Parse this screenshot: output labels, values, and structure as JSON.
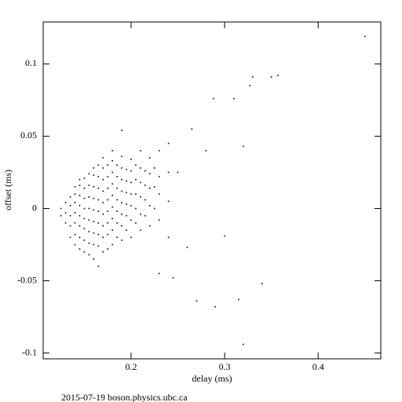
{
  "chart_data": {
    "type": "scatter",
    "xlabel": "delay (ms)",
    "ylabel": "offset (ms)",
    "footer": "2015-07-19  boson.physics.ubc.ca",
    "color": "#000000",
    "xlim": [
      0.106,
      0.467
    ],
    "ylim": [
      -0.104,
      0.129
    ],
    "xticks": [
      0.2,
      0.3,
      0.4
    ],
    "yticks": [
      -0.1,
      -0.05,
      0,
      0.05,
      0.1
    ],
    "x": [
      0.125,
      0.125,
      0.13,
      0.13,
      0.13,
      0.135,
      0.135,
      0.135,
      0.135,
      0.135,
      0.14,
      0.14,
      0.14,
      0.14,
      0.14,
      0.14,
      0.14,
      0.145,
      0.145,
      0.145,
      0.145,
      0.145,
      0.145,
      0.145,
      0.145,
      0.15,
      0.15,
      0.15,
      0.15,
      0.15,
      0.15,
      0.15,
      0.15,
      0.155,
      0.155,
      0.155,
      0.155,
      0.155,
      0.155,
      0.155,
      0.155,
      0.16,
      0.16,
      0.16,
      0.16,
      0.16,
      0.16,
      0.16,
      0.16,
      0.16,
      0.165,
      0.165,
      0.165,
      0.165,
      0.165,
      0.165,
      0.165,
      0.165,
      0.165,
      0.17,
      0.17,
      0.17,
      0.17,
      0.17,
      0.17,
      0.17,
      0.17,
      0.17,
      0.175,
      0.175,
      0.175,
      0.175,
      0.175,
      0.175,
      0.175,
      0.175,
      0.18,
      0.18,
      0.18,
      0.18,
      0.18,
      0.18,
      0.18,
      0.18,
      0.18,
      0.185,
      0.185,
      0.185,
      0.185,
      0.185,
      0.185,
      0.185,
      0.19,
      0.19,
      0.19,
      0.19,
      0.19,
      0.19,
      0.19,
      0.19,
      0.195,
      0.195,
      0.195,
      0.195,
      0.195,
      0.195,
      0.2,
      0.2,
      0.2,
      0.2,
      0.2,
      0.2,
      0.2,
      0.205,
      0.205,
      0.205,
      0.205,
      0.205,
      0.21,
      0.21,
      0.21,
      0.21,
      0.21,
      0.21,
      0.215,
      0.215,
      0.215,
      0.215,
      0.22,
      0.22,
      0.22,
      0.22,
      0.22,
      0.225,
      0.225,
      0.225,
      0.23,
      0.23,
      0.23,
      0.23,
      0.24,
      0.24,
      0.24,
      0.45,
      0.357,
      0.35,
      0.33,
      0.327,
      0.31,
      0.288,
      0.19,
      0.265,
      0.32,
      0.3,
      0.34,
      0.27,
      0.29,
      0.315,
      0.32,
      0.245,
      0.23,
      0.25,
      0.26,
      0.28,
      0.24
    ],
    "values": [
      -0.005,
      0.0,
      -0.01,
      -0.003,
      0.004,
      -0.02,
      -0.012,
      -0.005,
      0.002,
      0.008,
      -0.025,
      -0.018,
      -0.01,
      -0.003,
      0.004,
      0.01,
      0.015,
      -0.028,
      -0.02,
      -0.012,
      -0.005,
      0.002,
      0.009,
      0.016,
      0.02,
      -0.03,
      -0.022,
      -0.014,
      -0.007,
      0.0,
      0.007,
      0.014,
      0.021,
      -0.032,
      -0.024,
      -0.016,
      -0.008,
      0.0,
      0.008,
      0.016,
      0.024,
      -0.035,
      -0.025,
      -0.017,
      -0.009,
      -0.001,
      0.007,
      0.015,
      0.023,
      0.028,
      -0.04,
      -0.026,
      -0.018,
      -0.01,
      -0.002,
      0.006,
      0.014,
      0.022,
      0.03,
      -0.03,
      -0.02,
      -0.012,
      -0.004,
      0.004,
      0.012,
      0.02,
      0.028,
      0.035,
      -0.028,
      -0.018,
      -0.01,
      -0.002,
      0.006,
      0.014,
      0.022,
      0.03,
      -0.025,
      -0.015,
      -0.007,
      0.001,
      0.009,
      0.017,
      0.025,
      0.033,
      0.04,
      -0.02,
      -0.01,
      -0.002,
      0.006,
      0.014,
      0.022,
      0.03,
      -0.022,
      -0.012,
      -0.004,
      0.004,
      0.012,
      0.02,
      0.028,
      0.036,
      -0.015,
      -0.005,
      0.003,
      0.011,
      0.019,
      0.027,
      -0.02,
      -0.008,
      0.002,
      0.01,
      0.018,
      0.026,
      0.034,
      -0.01,
      0.0,
      0.01,
      0.02,
      0.03,
      -0.015,
      -0.004,
      0.008,
      0.018,
      0.028,
      0.04,
      -0.005,
      0.006,
      0.016,
      0.026,
      -0.012,
      0.002,
      0.014,
      0.024,
      0.035,
      0.0,
      0.015,
      0.028,
      -0.008,
      0.01,
      0.022,
      0.04,
      -0.02,
      0.005,
      0.025,
      0.119,
      0.092,
      0.091,
      0.091,
      0.085,
      0.076,
      0.076,
      0.054,
      0.055,
      0.043,
      -0.019,
      -0.052,
      -0.064,
      -0.068,
      -0.063,
      -0.094,
      -0.048,
      -0.045,
      0.025,
      -0.027,
      0.04,
      0.045
    ]
  }
}
